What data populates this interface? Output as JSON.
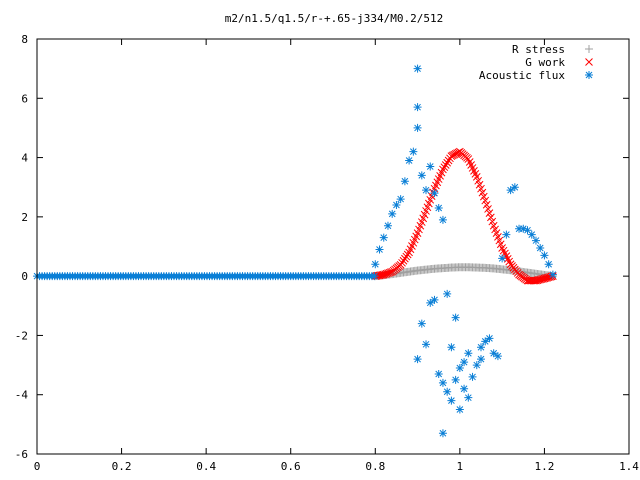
{
  "chart_data": {
    "type": "scatter",
    "title": "m2/n1.5/q1.5/r-+.65-j334/M0.2/512",
    "xlabel": "",
    "ylabel": "",
    "xlim": [
      0,
      1.4
    ],
    "ylim": [
      -6,
      8
    ],
    "x_ticks": [
      "0",
      "0.2",
      "0.4",
      "0.6",
      "0.8",
      "1",
      "1.2",
      "1.4"
    ],
    "y_ticks": [
      "-6",
      "-4",
      "-2",
      "0",
      "2",
      "4",
      "6",
      "8"
    ],
    "grid": false,
    "legend_position": "top-right",
    "series": [
      {
        "name": "R stress",
        "marker": "plus",
        "color": "#a0a0a0",
        "x": [
          0.8,
          0.82,
          0.84,
          0.86,
          0.88,
          0.9,
          0.92,
          0.94,
          0.96,
          0.98,
          1.0,
          1.02,
          1.04,
          1.06,
          1.08,
          1.1,
          1.12,
          1.14,
          1.16,
          1.18,
          1.2,
          1.22
        ],
        "y": [
          0.0,
          0.03,
          0.07,
          0.11,
          0.15,
          0.19,
          0.22,
          0.25,
          0.27,
          0.29,
          0.3,
          0.3,
          0.29,
          0.28,
          0.26,
          0.23,
          0.2,
          0.16,
          0.12,
          0.08,
          0.04,
          0.0
        ]
      },
      {
        "name": "G work",
        "marker": "cross",
        "color": "#ff0000",
        "x": [
          0.8,
          0.82,
          0.84,
          0.86,
          0.88,
          0.9,
          0.92,
          0.94,
          0.96,
          0.98,
          1.0,
          1.02,
          1.04,
          1.06,
          1.08,
          1.1,
          1.12,
          1.14,
          1.16,
          1.18,
          1.2,
          1.22
        ],
        "y": [
          0.0,
          0.05,
          0.15,
          0.38,
          0.8,
          1.45,
          2.2,
          2.95,
          3.6,
          4.05,
          4.2,
          3.95,
          3.35,
          2.55,
          1.7,
          0.95,
          0.4,
          0.05,
          -0.15,
          -0.15,
          -0.08,
          0.0
        ]
      },
      {
        "name": "Acoustic flux",
        "marker": "star",
        "color": "#0a7fd6",
        "x": [
          0.8,
          0.81,
          0.82,
          0.83,
          0.84,
          0.85,
          0.86,
          0.87,
          0.88,
          0.89,
          0.9,
          0.9,
          0.9,
          0.9,
          0.91,
          0.91,
          0.92,
          0.92,
          0.93,
          0.93,
          0.94,
          0.94,
          0.95,
          0.95,
          0.96,
          0.96,
          0.96,
          0.97,
          0.97,
          0.98,
          0.98,
          0.99,
          0.99,
          1.0,
          1.0,
          1.01,
          1.01,
          1.02,
          1.02,
          1.03,
          1.04,
          1.05,
          1.05,
          1.06,
          1.07,
          1.08,
          1.09,
          1.1,
          1.11,
          1.12,
          1.13,
          1.14,
          1.15,
          1.16,
          1.17,
          1.18,
          1.19,
          1.2,
          1.21,
          1.22
        ],
        "y": [
          0.4,
          0.9,
          1.3,
          1.7,
          2.1,
          2.4,
          2.6,
          3.2,
          3.9,
          4.2,
          5.0,
          5.7,
          7.0,
          -2.8,
          3.4,
          -1.6,
          2.9,
          -2.3,
          -0.9,
          3.7,
          -0.8,
          2.8,
          -3.3,
          2.3,
          -3.6,
          -5.3,
          1.9,
          -3.9,
          -0.6,
          -2.4,
          -4.2,
          -3.5,
          -1.4,
          -4.5,
          -3.1,
          -3.8,
          -2.9,
          -4.1,
          -2.6,
          -3.4,
          -3.0,
          -2.8,
          -2.4,
          -2.2,
          -2.1,
          -2.6,
          -2.7,
          0.6,
          1.4,
          2.9,
          3.0,
          1.6,
          1.6,
          1.55,
          1.4,
          1.2,
          0.95,
          0.7,
          0.4,
          0.05
        ],
        "baseline_from": 0,
        "baseline_to": 0.8,
        "baseline_y": 0
      }
    ]
  }
}
